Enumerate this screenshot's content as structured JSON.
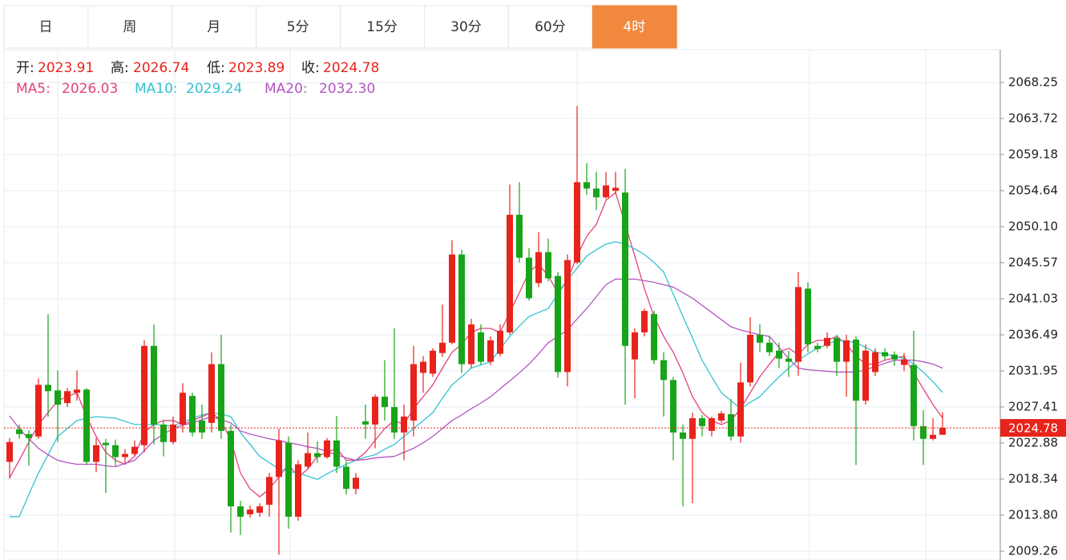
{
  "tabs": [
    "日",
    "周",
    "月",
    "5分",
    "15分",
    "30分",
    "60分",
    "4时"
  ],
  "active_tab": 7,
  "chart_data": {
    "type": "candlestick",
    "up_color": "#e8231b",
    "down_color": "#18a418",
    "ohlc_labels": [
      "开:",
      "高:",
      "低:",
      "收:"
    ],
    "ylim": [
      2008.15,
      2072.38
    ],
    "yticks": [
      2068.25,
      2063.72,
      2059.18,
      2054.64,
      {
        "value": 2050.1,
        "label": "2050.10"
      },
      2045.57,
      2041.03,
      2036.49,
      2031.95,
      2027.41,
      2022.88,
      2018.34,
      {
        "value": 2013.8,
        "label": "2013.80"
      },
      2009.26
    ],
    "grid": true,
    "candles": [
      [
        2020.5,
        2023.5,
        2018.4,
        2023.0
      ],
      [
        2024.6,
        2025.2,
        2023.4,
        2024.0
      ],
      [
        2024.0,
        2024.5,
        2020.0,
        2023.5
      ],
      [
        2023.7,
        2031.0,
        2023.4,
        2030.2
      ],
      [
        2030.2,
        2039.1,
        2026.2,
        2029.4
      ],
      [
        2029.5,
        2032.0,
        2023.0,
        2027.7
      ],
      [
        2027.9,
        2029.8,
        2027.4,
        2029.4
      ],
      [
        2029.2,
        2032.0,
        2028.2,
        2029.6
      ],
      [
        2029.6,
        2029.8,
        2020.1,
        2020.5
      ],
      [
        2020.5,
        2023.5,
        2019.2,
        2022.6
      ],
      [
        2022.9,
        2023.4,
        2016.6,
        2022.6
      ],
      [
        2022.6,
        2023.3,
        2020.0,
        2021.1
      ],
      [
        2021.1,
        2022.1,
        2020.3,
        2021.5
      ],
      [
        2021.5,
        2023.2,
        2021.2,
        2022.4
      ],
      [
        2022.6,
        2035.8,
        2021.7,
        2035.1
      ],
      [
        2035.1,
        2037.8,
        2022.7,
        2025.2
      ],
      [
        2025.2,
        2025.7,
        2021.2,
        2023.0
      ],
      [
        2023.0,
        2026.2,
        2022.7,
        2025.2
      ],
      [
        2025.2,
        2030.4,
        2024.2,
        2029.2
      ],
      [
        2028.8,
        2029.2,
        2023.7,
        2024.2
      ],
      [
        2025.7,
        2027.7,
        2023.4,
        2024.2
      ],
      [
        2025.4,
        2034.3,
        2024.2,
        2032.8
      ],
      [
        2032.8,
        2036.5,
        2023.4,
        2024.4
      ],
      [
        2024.4,
        2025.2,
        2011.6,
        2014.9
      ],
      [
        2014.9,
        2015.6,
        2011.3,
        2013.6
      ],
      [
        2013.9,
        2015.0,
        2013.5,
        2014.5
      ],
      [
        2014.1,
        2015.3,
        2013.6,
        2014.9
      ],
      [
        2015.1,
        2019.1,
        2013.6,
        2018.6
      ],
      [
        2018.6,
        2024.7,
        2008.8,
        2023.2
      ],
      [
        2022.9,
        2023.7,
        2012.1,
        2013.6
      ],
      [
        2013.6,
        2020.7,
        2013.1,
        2020.2
      ],
      [
        2019.9,
        2024.2,
        2019.6,
        2021.6
      ],
      [
        2021.6,
        2023.1,
        2020.4,
        2021.1
      ],
      [
        2021.1,
        2023.5,
        2020.9,
        2023.2
      ],
      [
        2023.2,
        2026.3,
        2019.1,
        2019.9
      ],
      [
        2019.9,
        2020.6,
        2016.4,
        2017.1
      ],
      [
        2017.1,
        2019.1,
        2016.4,
        2018.5
      ],
      [
        2025.6,
        2027.7,
        2023.4,
        2025.2
      ],
      [
        2025.2,
        2029.0,
        2022.2,
        2028.7
      ],
      [
        2028.7,
        2033.3,
        2025.7,
        2027.4
      ],
      [
        2027.4,
        2037.3,
        2023.4,
        2024.2
      ],
      [
        2024.2,
        2027.7,
        2020.7,
        2026.2
      ],
      [
        2025.7,
        2035.1,
        2023.7,
        2032.8
      ],
      [
        2031.7,
        2033.8,
        2029.2,
        2033.1
      ],
      [
        2031.6,
        2034.8,
        2031.2,
        2034.5
      ],
      [
        2034.2,
        2040.3,
        2033.7,
        2035.5
      ],
      [
        2035.5,
        2048.4,
        2035.3,
        2046.6
      ],
      [
        2046.6,
        2047.2,
        2031.7,
        2032.8
      ],
      [
        2032.8,
        2038.5,
        2032.3,
        2037.8
      ],
      [
        2036.8,
        2037.8,
        2032.7,
        2033.1
      ],
      [
        2033.1,
        2036.3,
        2032.7,
        2035.8
      ],
      [
        2034.1,
        2037.8,
        2033.8,
        2037.0
      ],
      [
        2036.8,
        2055.4,
        2036.5,
        2051.6
      ],
      [
        2051.6,
        2055.7,
        2045.6,
        2046.2
      ],
      [
        2046.2,
        2047.4,
        2040.8,
        2041.1
      ],
      [
        2043.0,
        2049.4,
        2042.5,
        2046.9
      ],
      [
        2046.9,
        2048.6,
        2043.2,
        2043.6
      ],
      [
        2043.9,
        2044.4,
        2031.1,
        2031.8
      ],
      [
        2031.8,
        2046.6,
        2030.0,
        2045.9
      ],
      [
        2045.6,
        2065.3,
        2045.4,
        2055.7
      ],
      [
        2055.7,
        2058.1,
        2054.1,
        2054.9
      ],
      [
        2054.9,
        2057.0,
        2052.2,
        2053.8
      ],
      [
        2053.8,
        2057.0,
        2053.6,
        2055.3
      ],
      [
        2054.6,
        2057.0,
        2054.2,
        2055.0
      ],
      [
        2054.4,
        2057.4,
        2027.7,
        2035.1
      ],
      [
        2033.4,
        2037.3,
        2028.5,
        2036.8
      ],
      [
        2036.8,
        2039.8,
        2036.3,
        2039.5
      ],
      [
        2039.1,
        2039.5,
        2032.8,
        2033.3
      ],
      [
        2033.3,
        2034.3,
        2026.2,
        2030.8
      ],
      [
        2030.8,
        2031.2,
        2020.7,
        2024.2
      ],
      [
        2024.2,
        2025.2,
        2014.9,
        2023.4
      ],
      [
        2023.4,
        2026.7,
        2015.3,
        2026.0
      ],
      [
        2026.0,
        2026.4,
        2023.7,
        2025.0
      ],
      [
        2024.4,
        2026.2,
        2023.7,
        2026.0
      ],
      [
        2025.7,
        2026.9,
        2025.4,
        2026.6
      ],
      [
        2026.5,
        2028.4,
        2023.2,
        2023.7
      ],
      [
        2023.7,
        2033.0,
        2022.9,
        2030.5
      ],
      [
        2030.5,
        2038.7,
        2030.0,
        2036.5
      ],
      [
        2036.5,
        2037.8,
        2034.3,
        2035.5
      ],
      [
        2035.5,
        2036.3,
        2033.8,
        2034.3
      ],
      [
        2034.5,
        2035.5,
        2032.3,
        2033.5
      ],
      [
        2033.5,
        2034.5,
        2031.2,
        2033.1
      ],
      [
        2033.1,
        2044.4,
        2031.3,
        2042.5
      ],
      [
        2042.3,
        2043.1,
        2034.3,
        2035.3
      ],
      [
        2035.1,
        2035.5,
        2034.3,
        2034.7
      ],
      [
        2035.1,
        2036.8,
        2034.8,
        2036.1
      ],
      [
        2036.1,
        2036.5,
        2031.3,
        2033.1
      ],
      [
        2033.1,
        2036.5,
        2028.7,
        2035.8
      ],
      [
        2035.9,
        2036.3,
        2020.1,
        2028.2
      ],
      [
        2028.2,
        2035.3,
        2027.7,
        2034.5
      ],
      [
        2031.8,
        2034.8,
        2031.3,
        2034.3
      ],
      [
        2034.3,
        2034.8,
        2033.3,
        2033.8
      ],
      [
        2034.0,
        2034.4,
        2032.6,
        2033.4
      ],
      [
        2032.7,
        2034.2,
        2031.9,
        2033.4
      ],
      [
        2032.7,
        2037.0,
        2023.2,
        2025.0
      ],
      [
        2025.0,
        2027.0,
        2020.1,
        2023.4
      ],
      [
        2023.4,
        2026.0,
        2023.2,
        2023.9
      ],
      [
        2023.91,
        2026.74,
        2023.89,
        2024.78
      ]
    ],
    "series": [
      {
        "name": "MA5:",
        "color": "#e4427c",
        "value_labels": {
          "97": "2026.03"
        },
        "values": [
          2018.5,
          2020.7,
          2023.0,
          2025.2,
          2026.7,
          2028.2,
          2028.7,
          2029.2,
          2026.2,
          2023.7,
          2021.7,
          2020.7,
          2020.2,
          2021.2,
          2024.2,
          2025.2,
          2025.7,
          2025.7,
          2025.2,
          2025.7,
          2026.2,
          2026.7,
          2025.7,
          2023.2,
          2019.1,
          2017.1,
          2016.1,
          2017.1,
          2018.6,
          2020.2,
          2018.6,
          2019.6,
          2021.2,
          2021.7,
          2022.2,
          2020.7,
          2020.7,
          2021.7,
          2023.2,
          2024.7,
          2025.7,
          2025.2,
          2027.2,
          2028.7,
          2030.2,
          2032.3,
          2034.3,
          2035.3,
          2036.8,
          2037.3,
          2037.3,
          2036.8,
          2039.3,
          2041.8,
          2044.4,
          2045.4,
          2043.9,
          2041.8,
          2043.4,
          2046.4,
          2048.9,
          2050.4,
          2053.4,
          2054.4,
          2050.4,
          2046.4,
          2042.3,
          2038.8,
          2036.3,
          2034.3,
          2031.7,
          2028.7,
          2026.7,
          2025.7,
          2025.2,
          2025.7,
          2027.2,
          2029.2,
          2031.2,
          2032.8,
          2034.3,
          2034.8,
          2034.0,
          2035.3,
          2035.8,
          2035.8,
          2036.3,
          2035.3,
          2033.8,
          2032.8,
          2032.8,
          2033.3,
          2033.6,
          2033.8,
          2031.7,
          2029.7,
          2027.7,
          2026.03
        ]
      },
      {
        "name": "MA10:",
        "color": "#34c3d1",
        "value_labels": {
          "97": "2029.24"
        },
        "values": [
          2013.6,
          2013.6,
          2016.4,
          2019.1,
          2021.4,
          2023.7,
          2024.7,
          2025.7,
          2026.0,
          2026.2,
          2026.1,
          2026.0,
          2025.6,
          2025.2,
          2025.2,
          2025.2,
          2025.1,
          2025.0,
          2025.5,
          2026.0,
          2026.4,
          2026.7,
          2026.5,
          2026.2,
          2024.2,
          2022.7,
          2021.2,
          2020.4,
          2019.6,
          2019.3,
          2019.1,
          2018.7,
          2018.3,
          2019.0,
          2019.6,
          2020.2,
          2020.7,
          2021.1,
          2021.4,
          2022.1,
          2022.7,
          2023.7,
          2024.7,
          2025.7,
          2026.7,
          2028.5,
          2030.2,
          2031.2,
          2032.3,
          2032.7,
          2033.1,
          2034.7,
          2036.3,
          2037.6,
          2038.8,
          2039.3,
          2039.8,
          2041.6,
          2043.4,
          2044.9,
          2046.4,
          2047.2,
          2047.9,
          2048.2,
          2047.9,
          2047.3,
          2046.6,
          2045.6,
          2044.4,
          2041.6,
          2038.8,
          2036.1,
          2033.3,
          2031.2,
          2029.2,
          2028.2,
          2027.2,
          2028.0,
          2028.7,
          2030.0,
          2031.2,
          2032.3,
          2033.3,
          2034.1,
          2034.8,
          2035.3,
          2035.8,
          2035.7,
          2035.5,
          2034.9,
          2034.3,
          2034.1,
          2033.8,
          2033.5,
          2032.8,
          2031.8,
          2030.6,
          2029.24
        ]
      },
      {
        "name": "MA20:",
        "color": "#b355c2",
        "value_labels": {
          "97": "2032.30"
        },
        "values": [
          2026.3,
          2024.7,
          2023.4,
          2022.2,
          2021.4,
          2020.7,
          2020.4,
          2020.2,
          2020.2,
          2020.2,
          2020.0,
          2019.9,
          2020.3,
          2020.7,
          2021.9,
          2023.2,
          2024.0,
          2024.7,
          2025.1,
          2025.4,
          2025.8,
          2026.2,
          2025.8,
          2025.4,
          2024.4,
          2024.0,
          2023.7,
          2023.4,
          2023.2,
          2022.9,
          2022.7,
          2022.4,
          2022.2,
          2021.8,
          2021.4,
          2021.0,
          2020.7,
          2020.8,
          2021.0,
          2021.1,
          2021.2,
          2021.7,
          2022.2,
          2022.9,
          2023.7,
          2024.7,
          2025.7,
          2026.4,
          2027.2,
          2027.9,
          2028.7,
          2029.7,
          2030.7,
          2031.7,
          2032.8,
          2034.1,
          2035.5,
          2036.3,
          2037.1,
          2038.5,
          2039.8,
          2041.3,
          2042.8,
          2043.5,
          2043.5,
          2043.5,
          2043.3,
          2043.1,
          2042.8,
          2042.5,
          2041.8,
          2041.1,
          2040.2,
          2039.3,
          2038.4,
          2037.5,
          2037.1,
          2036.8,
          2036.5,
          2036.3,
          2034.9,
          2033.5,
          2032.3,
          2032.1,
          2032.0,
          2031.9,
          2031.8,
          2031.8,
          2031.8,
          2032.1,
          2032.5,
          2032.9,
          2033.3,
          2033.3,
          2033.3,
          2033.1,
          2032.8,
          2032.3
        ]
      }
    ]
  }
}
